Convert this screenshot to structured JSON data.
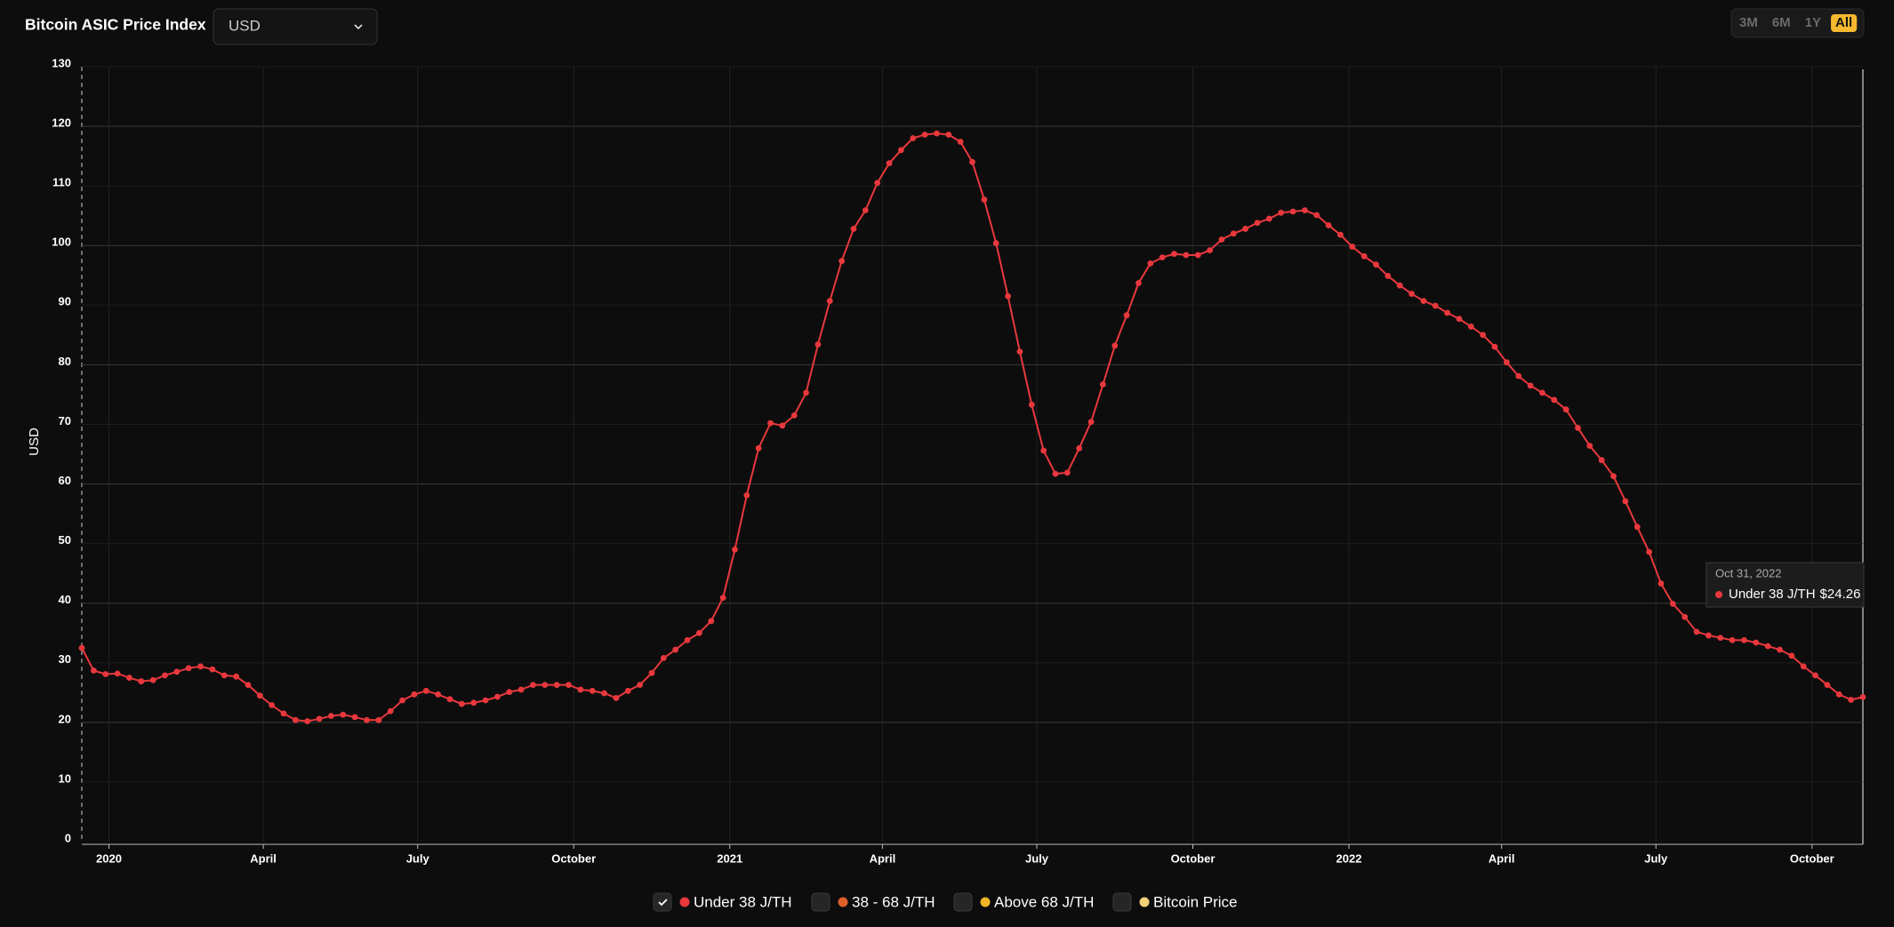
{
  "header": {
    "title": "Bitcoin ASIC Price Index",
    "currency": "USD",
    "ranges": [
      "3M",
      "6M",
      "1Y",
      "All"
    ],
    "active_range": "All"
  },
  "chart_data": {
    "type": "line",
    "y_label": "USD",
    "grid": true,
    "xlim": [
      "2019-12-16",
      "2022-10-31"
    ],
    "xticks": [
      {
        "value": "2020-01-01",
        "label": "2020"
      },
      {
        "value": "2020-04-01",
        "label": "April"
      },
      {
        "value": "2020-07-01",
        "label": "July"
      },
      {
        "value": "2020-10-01",
        "label": "October"
      },
      {
        "value": "2021-01-01",
        "label": "2021"
      },
      {
        "value": "2021-04-01",
        "label": "April"
      },
      {
        "value": "2021-07-01",
        "label": "July"
      },
      {
        "value": "2021-10-01",
        "label": "October"
      },
      {
        "value": "2022-01-01",
        "label": "2022"
      },
      {
        "value": "2022-04-01",
        "label": "April"
      },
      {
        "value": "2022-07-01",
        "label": "July"
      },
      {
        "value": "2022-10-01",
        "label": "October"
      }
    ],
    "ylim": [
      0,
      130
    ],
    "yticks": [
      0,
      10,
      20,
      30,
      40,
      50,
      60,
      70,
      80,
      90,
      100,
      110,
      120,
      130
    ],
    "x": [
      "2019-12-16",
      "2019-12-23",
      "2019-12-30",
      "2020-01-06",
      "2020-01-13",
      "2020-01-20",
      "2020-01-27",
      "2020-02-03",
      "2020-02-10",
      "2020-02-17",
      "2020-02-24",
      "2020-03-02",
      "2020-03-09",
      "2020-03-16",
      "2020-03-23",
      "2020-03-30",
      "2020-04-06",
      "2020-04-13",
      "2020-04-20",
      "2020-04-27",
      "2020-05-04",
      "2020-05-11",
      "2020-05-18",
      "2020-05-25",
      "2020-06-01",
      "2020-06-08",
      "2020-06-15",
      "2020-06-22",
      "2020-06-29",
      "2020-07-06",
      "2020-07-13",
      "2020-07-20",
      "2020-07-27",
      "2020-08-03",
      "2020-08-10",
      "2020-08-17",
      "2020-08-24",
      "2020-08-31",
      "2020-09-07",
      "2020-09-14",
      "2020-09-21",
      "2020-09-28",
      "2020-10-05",
      "2020-10-12",
      "2020-10-19",
      "2020-10-26",
      "2020-11-02",
      "2020-11-09",
      "2020-11-16",
      "2020-11-23",
      "2020-11-30",
      "2020-12-07",
      "2020-12-14",
      "2020-12-21",
      "2020-12-28",
      "2021-01-04",
      "2021-01-11",
      "2021-01-18",
      "2021-01-25",
      "2021-02-01",
      "2021-02-08",
      "2021-02-15",
      "2021-02-22",
      "2021-03-01",
      "2021-03-08",
      "2021-03-15",
      "2021-03-22",
      "2021-03-29",
      "2021-04-05",
      "2021-04-12",
      "2021-04-19",
      "2021-04-26",
      "2021-05-03",
      "2021-05-10",
      "2021-05-17",
      "2021-05-24",
      "2021-05-31",
      "2021-06-07",
      "2021-06-14",
      "2021-06-21",
      "2021-06-28",
      "2021-07-05",
      "2021-07-12",
      "2021-07-19",
      "2021-07-26",
      "2021-08-02",
      "2021-08-09",
      "2021-08-16",
      "2021-08-23",
      "2021-08-30",
      "2021-09-06",
      "2021-09-13",
      "2021-09-20",
      "2021-09-27",
      "2021-10-04",
      "2021-10-11",
      "2021-10-18",
      "2021-10-25",
      "2021-11-01",
      "2021-11-08",
      "2021-11-15",
      "2021-11-22",
      "2021-11-29",
      "2021-12-06",
      "2021-12-13",
      "2021-12-20",
      "2021-12-27",
      "2022-01-03",
      "2022-01-10",
      "2022-01-17",
      "2022-01-24",
      "2022-01-31",
      "2022-02-07",
      "2022-02-14",
      "2022-02-21",
      "2022-02-28",
      "2022-03-07",
      "2022-03-14",
      "2022-03-21",
      "2022-03-28",
      "2022-04-04",
      "2022-04-11",
      "2022-04-18",
      "2022-04-25",
      "2022-05-02",
      "2022-05-09",
      "2022-05-16",
      "2022-05-23",
      "2022-05-30",
      "2022-06-06",
      "2022-06-13",
      "2022-06-20",
      "2022-06-27",
      "2022-07-04",
      "2022-07-11",
      "2022-07-18",
      "2022-07-25",
      "2022-08-01",
      "2022-08-08",
      "2022-08-15",
      "2022-08-22",
      "2022-08-29",
      "2022-09-05",
      "2022-09-12",
      "2022-09-19",
      "2022-09-26",
      "2022-10-03",
      "2022-10-10",
      "2022-10-17",
      "2022-10-24",
      "2022-10-31"
    ],
    "series": [
      {
        "name": "Under 38 J/TH",
        "color": "#e8383d",
        "visible": true,
        "values": [
          32.5,
          28.7,
          28.1,
          28.2,
          27.5,
          26.9,
          27.1,
          27.9,
          28.5,
          29.1,
          29.4,
          28.9,
          27.9,
          27.7,
          26.3,
          24.5,
          22.9,
          21.5,
          20.4,
          20.2,
          20.6,
          21.1,
          21.3,
          20.9,
          20.4,
          20.4,
          21.9,
          23.7,
          24.7,
          25.3,
          24.7,
          23.9,
          23.1,
          23.3,
          23.7,
          24.3,
          25.1,
          25.5,
          26.3,
          26.3,
          26.3,
          26.3,
          25.5,
          25.3,
          24.9,
          24.1,
          25.3,
          26.3,
          28.3,
          30.8,
          32.2,
          33.8,
          35.0,
          37.0,
          40.9,
          49.0,
          58.1,
          66.0,
          70.2,
          69.8,
          71.5,
          75.3,
          83.4,
          90.7,
          97.4,
          102.8,
          105.9,
          110.5,
          113.8,
          116.0,
          118.0,
          118.6,
          118.8,
          118.6,
          117.4,
          114.0,
          107.7,
          100.4,
          91.5,
          82.2,
          73.3,
          65.6,
          61.7,
          61.9,
          66.0,
          70.4,
          76.7,
          83.2,
          88.3,
          93.7,
          97.0,
          98.0,
          98.6,
          98.4,
          98.4,
          99.2,
          101.0,
          102.0,
          102.8,
          103.8,
          104.5,
          105.5,
          105.7,
          105.9,
          105.1,
          103.4,
          101.8,
          99.8,
          98.2,
          96.8,
          94.9,
          93.3,
          91.9,
          90.7,
          89.9,
          88.7,
          87.7,
          86.4,
          85.0,
          83.0,
          80.4,
          78.1,
          76.5,
          75.3,
          74.1,
          72.5,
          69.4,
          66.4,
          64.0,
          61.3,
          57.1,
          52.8,
          48.6,
          43.3,
          39.9,
          37.7,
          35.2,
          34.6,
          34.2,
          33.8,
          33.8,
          33.4,
          32.8,
          32.2,
          31.2,
          29.4,
          27.9,
          26.3,
          24.7,
          23.8,
          24.26
        ]
      },
      {
        "name": "38 - 68 J/TH",
        "color": "#e0602a",
        "visible": false
      },
      {
        "name": "Above 68 J/TH",
        "color": "#f0b429",
        "visible": false
      },
      {
        "name": "Bitcoin Price",
        "color": "#f5d27a",
        "visible": false
      }
    ],
    "tooltip": {
      "date": "Oct 31, 2022",
      "value_label": "$24.26"
    }
  }
}
